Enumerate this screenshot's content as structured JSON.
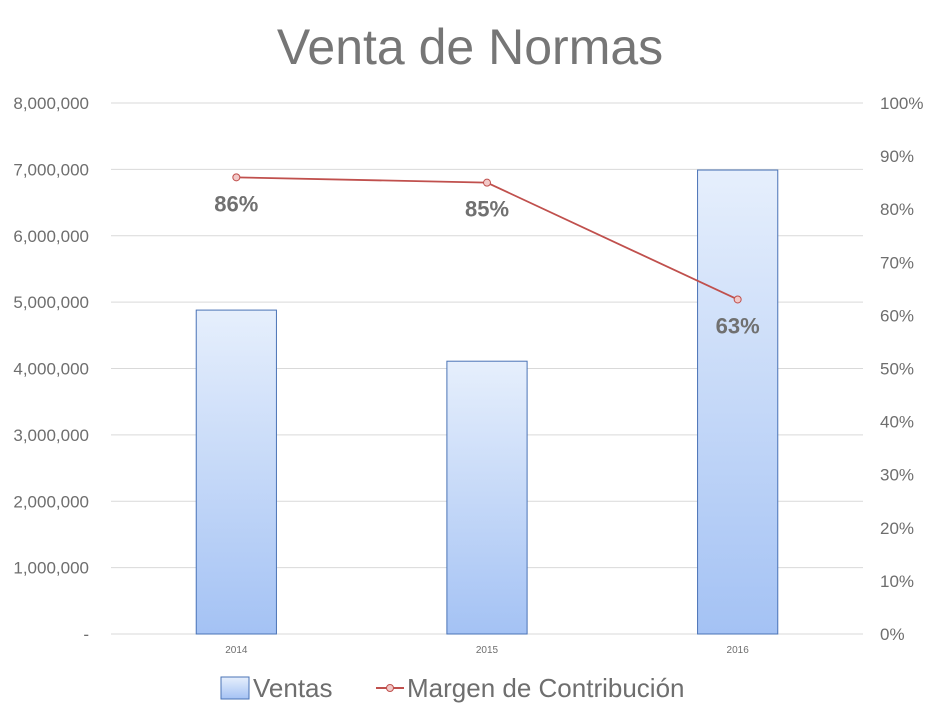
{
  "chart_data": {
    "type": "bar",
    "title": "Venta de Normas",
    "categories": [
      "2014",
      "2015",
      "2016"
    ],
    "series": [
      {
        "name": "Ventas",
        "type": "bar",
        "axis": "left",
        "values": [
          4880000,
          4110000,
          6990000
        ],
        "color": "#a4c2f4"
      },
      {
        "name": "Margen de Contribución",
        "type": "line",
        "axis": "right",
        "values": [
          0.86,
          0.85,
          0.63
        ],
        "data_labels": [
          "86%",
          "85%",
          "63%"
        ],
        "color": "#c0504d"
      }
    ],
    "y_left": {
      "ylim": [
        0,
        8000000
      ],
      "ticks": [
        0,
        1000000,
        2000000,
        3000000,
        4000000,
        5000000,
        6000000,
        7000000,
        8000000
      ],
      "tick_labels": [
        "-",
        "1,000,000",
        "2,000,000",
        "3,000,000",
        "4,000,000",
        "5,000,000",
        "6,000,000",
        "7,000,000",
        "8,000,000"
      ]
    },
    "y_right": {
      "ylim": [
        0,
        1
      ],
      "ticks": [
        0,
        0.1,
        0.2,
        0.3,
        0.4,
        0.5,
        0.6,
        0.7,
        0.8,
        0.9,
        1.0
      ],
      "tick_labels": [
        "0%",
        "10%",
        "20%",
        "30%",
        "40%",
        "50%",
        "60%",
        "70%",
        "80%",
        "90%",
        "100%"
      ]
    },
    "grid": true,
    "legend_position": "bottom"
  }
}
